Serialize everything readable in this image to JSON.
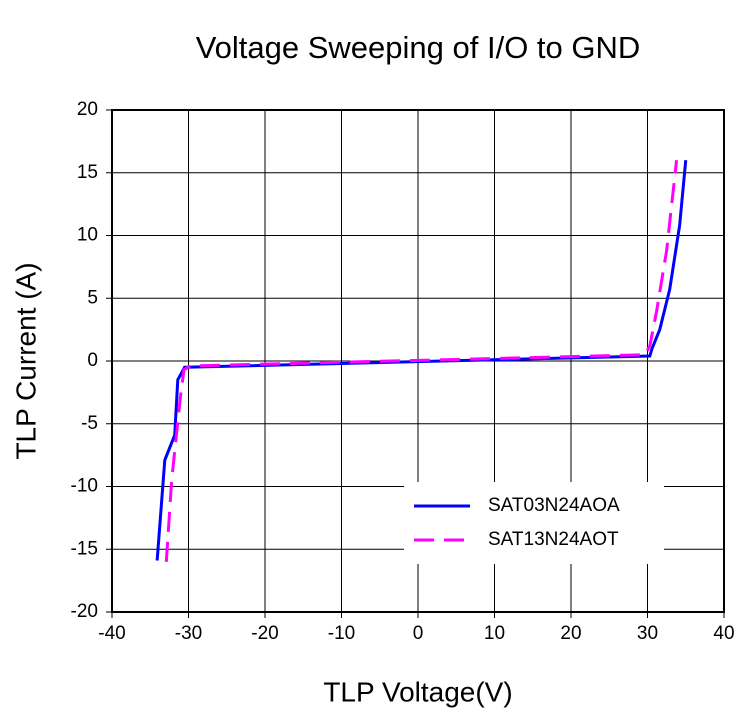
{
  "chart_data": {
    "type": "line",
    "title": "Voltage Sweeping of I/O to GND",
    "x_label": "TLP Voltage(V)",
    "y_label": "TLP Current (A)",
    "xlim": [
      -40,
      40
    ],
    "xticks": [
      -40,
      -30,
      -20,
      -10,
      0,
      10,
      20,
      30,
      40
    ],
    "ylim": [
      -20,
      20
    ],
    "yticks": [
      -20,
      -15,
      -10,
      -5,
      0,
      5,
      10,
      15,
      20
    ],
    "grid": true,
    "legend": "lower right",
    "series": [
      {
        "name": "SAT03N24AOA",
        "color": "#0000ff",
        "dash": false,
        "x": [
          -34.1,
          -33.1,
          -31.8,
          -31.4,
          -30.5,
          30.3,
          30.6,
          31.6,
          32.9,
          34.2,
          35
        ],
        "values": [
          -15.9,
          -7.9,
          -5.9,
          -1.5,
          -0.5,
          0.4,
          1,
          2.5,
          5.7,
          10.8,
          16
        ]
      },
      {
        "name": "SAT13N24AOT",
        "color": "#ff00ff",
        "dash": true,
        "x": [
          -32.9,
          -32.2,
          -31.1,
          -30.6,
          -29.8,
          29.7,
          30.3,
          31.2,
          32.5,
          33.8
        ],
        "values": [
          -16,
          -9.5,
          -3.1,
          -0.7,
          -0.4,
          0.5,
          1.2,
          4,
          8.8,
          16
        ]
      }
    ]
  }
}
